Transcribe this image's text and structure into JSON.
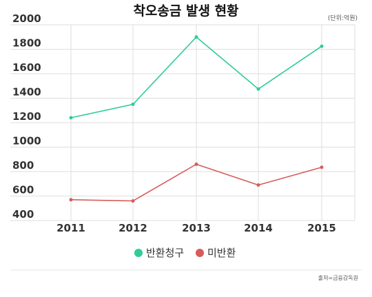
{
  "chart_data": {
    "type": "line",
    "title": "착오송금 발생 현황",
    "unit_note": "(단위:억원)",
    "source": "출처=금융감독원",
    "categories": [
      "2011",
      "2012",
      "2013",
      "2014",
      "2015"
    ],
    "ylim": [
      400,
      2000
    ],
    "yticks": [
      400,
      600,
      800,
      1000,
      1200,
      1400,
      1600,
      1800,
      2000
    ],
    "grid": true,
    "legend_position": "bottom",
    "series": [
      {
        "name": "반환청구",
        "color": "#2ecc9a",
        "values": [
          1240,
          1350,
          1900,
          1475,
          1825
        ]
      },
      {
        "name": "미반환",
        "color": "#d65c5c",
        "values": [
          570,
          560,
          860,
          690,
          835
        ]
      }
    ]
  }
}
